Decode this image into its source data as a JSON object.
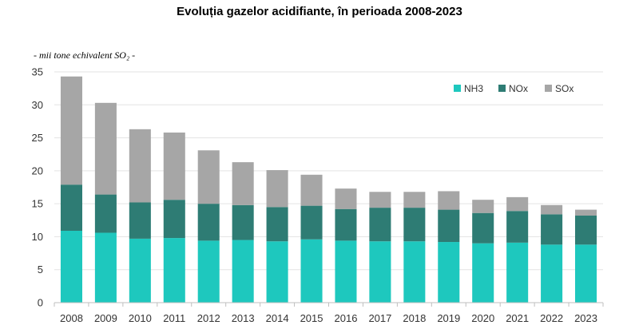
{
  "chart_data": {
    "type": "bar",
    "stacked": true,
    "title": "Evoluția gazelor acidifiante, în perioada 2008-2023",
    "unit_label": "- mii tone echivalent SO₂ -",
    "xlabel": "",
    "ylabel": "mii tone echivalent SO₂",
    "ylim": [
      0,
      35
    ],
    "yticks": [
      0,
      5,
      10,
      15,
      20,
      25,
      30,
      35
    ],
    "grid": true,
    "legend_position": "top-right",
    "categories": [
      "2008",
      "2009",
      "2010",
      "2011",
      "2012",
      "2013",
      "2014",
      "2015",
      "2016",
      "2017",
      "2018",
      "2019",
      "2020",
      "2021",
      "2022",
      "2023"
    ],
    "series": [
      {
        "name": "NH3",
        "color": "#1ec8be",
        "values": [
          10.9,
          10.6,
          9.7,
          9.8,
          9.4,
          9.5,
          9.3,
          9.6,
          9.4,
          9.3,
          9.3,
          9.2,
          9.0,
          9.1,
          8.8,
          8.8
        ]
      },
      {
        "name": "NOx",
        "color": "#2e7c74",
        "values": [
          7.0,
          5.8,
          5.5,
          5.8,
          5.6,
          5.3,
          5.2,
          5.1,
          4.8,
          5.1,
          5.1,
          4.9,
          4.6,
          4.8,
          4.6,
          4.4
        ]
      },
      {
        "name": "SOx",
        "color": "#a6a6a6",
        "values": [
          16.4,
          13.9,
          11.1,
          10.2,
          8.1,
          6.5,
          5.6,
          4.7,
          3.1,
          2.4,
          2.4,
          2.8,
          2.0,
          2.1,
          1.4,
          0.9
        ]
      }
    ]
  }
}
